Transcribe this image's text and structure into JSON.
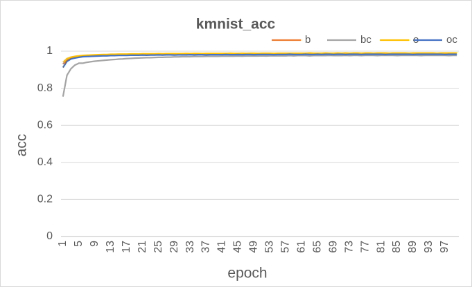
{
  "chart_data": {
    "type": "line",
    "title": "kmnist_acc",
    "x_label": "epoch",
    "y_label": "acc",
    "categories": [
      1,
      null,
      null,
      null,
      5,
      null,
      null,
      null,
      9,
      null,
      null,
      null,
      13,
      null,
      null,
      null,
      17,
      null,
      null,
      null,
      21,
      null,
      null,
      null,
      25,
      null,
      null,
      null,
      29,
      null,
      null,
      null,
      33,
      null,
      null,
      null,
      37,
      null,
      null,
      null,
      41,
      null,
      null,
      null,
      45,
      null,
      null,
      null,
      49,
      null,
      null,
      null,
      53,
      null,
      null,
      null,
      57,
      null,
      null,
      null,
      61,
      null,
      null,
      null,
      65,
      null,
      null,
      null,
      69,
      null,
      null,
      null,
      73,
      null,
      null,
      null,
      77,
      null,
      null,
      null,
      81,
      null,
      null,
      null,
      85,
      null,
      null,
      null,
      89,
      null,
      null,
      null,
      93,
      null,
      null,
      null,
      97,
      null,
      null,
      null
    ],
    "ylim": [
      0,
      1
    ],
    "yticks": [
      0,
      0.2,
      0.4,
      0.6,
      0.8,
      1
    ],
    "grid": true,
    "legend": "top-right",
    "series": [
      {
        "name": "b",
        "color": "#ed7d31",
        "values": [
          0.93,
          0.955,
          0.963,
          0.967,
          0.97,
          0.972,
          0.974,
          0.975,
          0.976,
          0.977,
          0.978,
          0.978,
          0.979,
          0.979,
          0.98,
          0.98,
          0.98,
          0.981,
          0.981,
          0.981,
          0.982,
          0.981,
          0.982,
          0.982,
          0.983,
          0.982,
          0.983,
          0.983,
          0.982,
          0.983,
          0.983,
          0.984,
          0.983,
          0.984,
          0.984,
          0.983,
          0.984,
          0.984,
          0.984,
          0.985,
          0.984,
          0.985,
          0.984,
          0.985,
          0.985,
          0.984,
          0.985,
          0.985,
          0.985,
          0.985,
          0.985,
          0.986,
          0.985,
          0.985,
          0.986,
          0.985,
          0.986,
          0.986,
          0.985,
          0.986,
          0.986,
          0.986,
          0.985,
          0.986,
          0.986,
          0.986,
          0.987,
          0.986,
          0.986,
          0.986,
          0.986,
          0.987,
          0.986,
          0.986,
          0.987,
          0.986,
          0.987,
          0.987,
          0.986,
          0.987,
          0.987,
          0.986,
          0.987,
          0.987,
          0.987,
          0.986,
          0.987,
          0.987,
          0.987,
          0.987,
          0.987,
          0.987,
          0.986,
          0.987,
          0.987,
          0.987,
          0.987,
          0.986,
          0.987,
          0.987
        ]
      },
      {
        "name": "bc",
        "color": "#a5a5a5",
        "values": [
          0.755,
          0.87,
          0.905,
          0.925,
          0.935,
          0.935,
          0.94,
          0.943,
          0.946,
          0.948,
          0.95,
          0.952,
          0.954,
          0.955,
          0.957,
          0.958,
          0.96,
          0.961,
          0.962,
          0.963,
          0.964,
          0.965,
          0.965,
          0.966,
          0.967,
          0.967,
          0.968,
          0.968,
          0.969,
          0.969,
          0.97,
          0.97,
          0.97,
          0.971,
          0.971,
          0.971,
          0.972,
          0.972,
          0.972,
          0.972,
          0.973,
          0.973,
          0.973,
          0.973,
          0.974,
          0.973,
          0.974,
          0.974,
          0.974,
          0.974,
          0.975,
          0.974,
          0.975,
          0.975,
          0.975,
          0.975,
          0.975,
          0.976,
          0.975,
          0.976,
          0.976,
          0.976,
          0.975,
          0.976,
          0.976,
          0.976,
          0.976,
          0.977,
          0.976,
          0.976,
          0.976,
          0.977,
          0.976,
          0.977,
          0.977,
          0.976,
          0.977,
          0.977,
          0.977,
          0.976,
          0.977,
          0.977,
          0.977,
          0.977,
          0.976,
          0.977,
          0.977,
          0.977,
          0.977,
          0.977,
          0.976,
          0.977,
          0.977,
          0.977,
          0.977,
          0.977,
          0.977,
          0.976,
          0.977,
          0.977
        ]
      },
      {
        "name": "o",
        "color": "#ffc000",
        "values": [
          0.94,
          0.96,
          0.968,
          0.972,
          0.975,
          0.977,
          0.978,
          0.979,
          0.98,
          0.981,
          0.982,
          0.982,
          0.983,
          0.983,
          0.984,
          0.984,
          0.984,
          0.985,
          0.985,
          0.985,
          0.986,
          0.986,
          0.986,
          0.986,
          0.987,
          0.986,
          0.987,
          0.987,
          0.987,
          0.987,
          0.987,
          0.988,
          0.987,
          0.988,
          0.988,
          0.987,
          0.988,
          0.988,
          0.988,
          0.988,
          0.988,
          0.988,
          0.989,
          0.988,
          0.988,
          0.989,
          0.988,
          0.989,
          0.989,
          0.988,
          0.989,
          0.989,
          0.989,
          0.988,
          0.989,
          0.989,
          0.989,
          0.989,
          0.989,
          0.989,
          0.989,
          0.989,
          0.99,
          0.989,
          0.989,
          0.989,
          0.99,
          0.989,
          0.989,
          0.99,
          0.989,
          0.99,
          0.989,
          0.99,
          0.99,
          0.989,
          0.99,
          0.99,
          0.989,
          0.99,
          0.99,
          0.99,
          0.989,
          0.99,
          0.99,
          0.99,
          0.99,
          0.989,
          0.99,
          0.99,
          0.99,
          0.99,
          0.99,
          0.99,
          0.989,
          0.99,
          0.99,
          0.99,
          0.99,
          0.99
        ]
      },
      {
        "name": "oc",
        "color": "#4472c4",
        "values": [
          0.912,
          0.945,
          0.958,
          0.963,
          0.967,
          0.97,
          0.971,
          0.972,
          0.973,
          0.974,
          0.975,
          0.975,
          0.976,
          0.976,
          0.977,
          0.977,
          0.977,
          0.978,
          0.978,
          0.978,
          0.979,
          0.978,
          0.979,
          0.979,
          0.98,
          0.979,
          0.98,
          0.98,
          0.979,
          0.98,
          0.98,
          0.98,
          0.981,
          0.98,
          0.981,
          0.981,
          0.98,
          0.981,
          0.981,
          0.981,
          0.981,
          0.982,
          0.981,
          0.981,
          0.982,
          0.981,
          0.982,
          0.982,
          0.981,
          0.982,
          0.982,
          0.982,
          0.982,
          0.981,
          0.982,
          0.982,
          0.982,
          0.983,
          0.982,
          0.982,
          0.982,
          0.983,
          0.982,
          0.982,
          0.983,
          0.982,
          0.983,
          0.983,
          0.982,
          0.983,
          0.983,
          0.982,
          0.983,
          0.983,
          0.983,
          0.982,
          0.983,
          0.983,
          0.983,
          0.983,
          0.983,
          0.982,
          0.983,
          0.983,
          0.983,
          0.983,
          0.983,
          0.983,
          0.982,
          0.983,
          0.983,
          0.983,
          0.983,
          0.983,
          0.983,
          0.983,
          0.982,
          0.983,
          0.983,
          0.983
        ]
      }
    ]
  }
}
